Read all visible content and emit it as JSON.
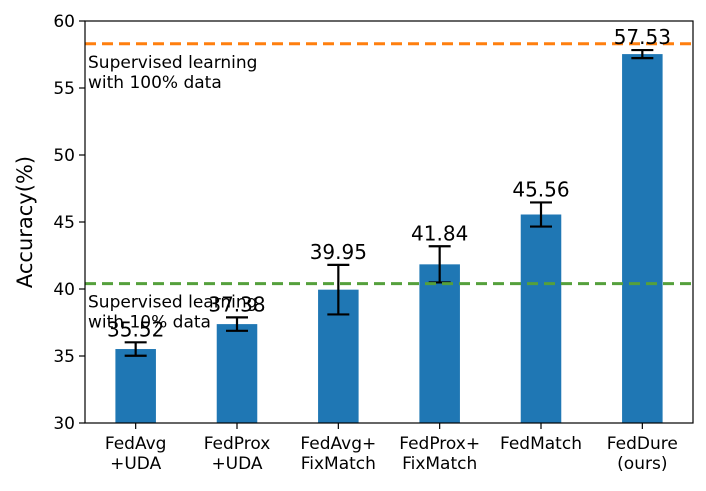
{
  "chart_data": {
    "type": "bar",
    "ylabel": "Accuracy(%)",
    "xlabel": "",
    "ylim": [
      30,
      60
    ],
    "yticks": [
      30,
      35,
      40,
      45,
      50,
      55,
      60
    ],
    "categories": [
      [
        "FedAvg",
        "+UDA"
      ],
      [
        "FedProx",
        "+UDA"
      ],
      [
        "FedAvg+",
        "FixMatch"
      ],
      [
        "FedProx+",
        "FixMatch"
      ],
      [
        "FedMatch"
      ],
      [
        "FedDure",
        "(ours)"
      ]
    ],
    "values": [
      35.52,
      37.38,
      39.95,
      41.84,
      45.56,
      57.53
    ],
    "value_labels": [
      "35.52",
      "37.38",
      "39.95",
      "41.84",
      "45.56",
      "57.53"
    ],
    "errors": [
      0.5,
      0.5,
      1.85,
      1.35,
      0.9,
      0.3
    ],
    "bar_color": "#1f77b4",
    "reference_lines": [
      {
        "value": 58.3,
        "color": "#ff7f0e",
        "label": [
          "Supervised learning",
          "with 100% data"
        ]
      },
      {
        "value": 40.4,
        "color": "#55a03c",
        "label": [
          "Supervised learning",
          "with 10% data"
        ]
      }
    ]
  }
}
